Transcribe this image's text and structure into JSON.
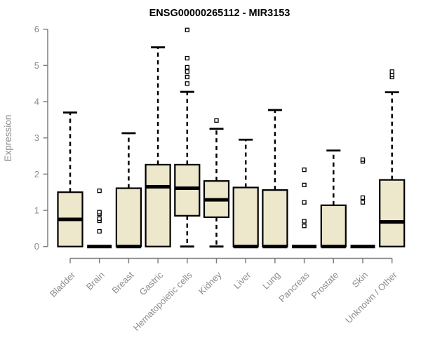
{
  "chart_data": {
    "type": "boxplot",
    "title": "ENSG00000265112 - MIR3153",
    "ylabel": "Expression",
    "xlabel": "",
    "ylim": [
      0,
      6
    ],
    "yticks": [
      0,
      1,
      2,
      3,
      4,
      5,
      6
    ],
    "grid": false,
    "legend": "none",
    "categories": [
      "Bladder",
      "Brain",
      "Breast",
      "Gastric",
      "Hematopoietic cells",
      "Kidney",
      "Liver",
      "Lung",
      "Pancreas",
      "Prostate",
      "Skin",
      "Unknown / Other"
    ],
    "series": [
      {
        "category": "Bladder",
        "whisker_low": 0,
        "q1": 0,
        "median": 0.75,
        "q3": 1.5,
        "whisker_high": 3.7,
        "outliers": []
      },
      {
        "category": "Brain",
        "whisker_low": 0,
        "q1": 0,
        "median": 0,
        "q3": 0,
        "whisker_high": 0,
        "outliers": [
          0.42,
          0.71,
          0.77,
          0.9,
          0.95,
          1.54
        ]
      },
      {
        "category": "Breast",
        "whisker_low": 0,
        "q1": 0,
        "median": 0,
        "q3": 1.61,
        "whisker_high": 3.13,
        "outliers": []
      },
      {
        "category": "Gastric",
        "whisker_low": 0,
        "q1": 0,
        "median": 1.65,
        "q3": 2.26,
        "whisker_high": 5.5,
        "outliers": []
      },
      {
        "category": "Hematopoietic cells",
        "whisker_low": 0,
        "q1": 0.85,
        "median": 1.61,
        "q3": 2.26,
        "whisker_high": 4.27,
        "outliers": [
          4.5,
          4.68,
          4.83,
          4.95,
          5.2,
          5.98
        ]
      },
      {
        "category": "Kidney",
        "whisker_low": 0,
        "q1": 0.81,
        "median": 1.29,
        "q3": 1.81,
        "whisker_high": 3.25,
        "outliers": [
          3.48
        ]
      },
      {
        "category": "Liver",
        "whisker_low": 0,
        "q1": 0,
        "median": 0,
        "q3": 1.63,
        "whisker_high": 2.95,
        "outliers": []
      },
      {
        "category": "Lung",
        "whisker_low": 0,
        "q1": 0,
        "median": 0,
        "q3": 1.56,
        "whisker_high": 3.77,
        "outliers": []
      },
      {
        "category": "Pancreas",
        "whisker_low": 0,
        "q1": 0,
        "median": 0,
        "q3": 0,
        "whisker_high": 0,
        "outliers": [
          0.57,
          0.7,
          1.22,
          1.7,
          2.12
        ]
      },
      {
        "category": "Prostate",
        "whisker_low": 0,
        "q1": 0,
        "median": 0,
        "q3": 1.14,
        "whisker_high": 2.65,
        "outliers": []
      },
      {
        "category": "Skin",
        "whisker_low": 0,
        "q1": 0,
        "median": 0,
        "q3": 0,
        "whisker_high": 0,
        "outliers": [
          1.22,
          1.35,
          2.35,
          2.4
        ]
      },
      {
        "category": "Unknown / Other",
        "whisker_low": 0,
        "q1": 0,
        "median": 0.68,
        "q3": 1.84,
        "whisker_high": 4.26,
        "outliers": [
          4.68,
          4.74,
          4.83
        ]
      }
    ],
    "colors": {
      "box_fill": "#ede7cb",
      "box_border": "#000000",
      "median": "#000000",
      "whisker": "#000000",
      "outlier": "#000000",
      "axis": "#7f7f7f",
      "labels": "#8c8c8c",
      "title": "#000000",
      "background": "#ffffff"
    }
  }
}
